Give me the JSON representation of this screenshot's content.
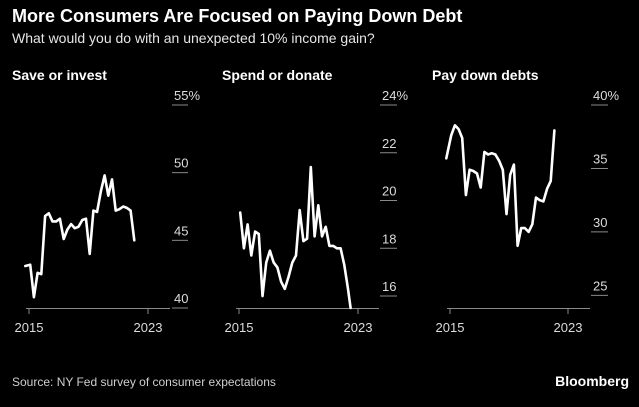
{
  "chart_data": {
    "type": "line",
    "title": "More Consumers Are Focused on Paying Down Debt",
    "subtitle": "What would you do with an unexpected 10% income gain?",
    "source": "Source: NY Fed survey of consumer expectations",
    "brand": "Bloomberg",
    "x_tick_labels": [
      "2015",
      "2023"
    ],
    "x_range": [
      2014.75,
      2023.0
    ],
    "panels": [
      {
        "title": "Save or invest",
        "ylim": [
          40,
          55
        ],
        "ticks": [
          55,
          50,
          45,
          40
        ],
        "tick_labels": [
          "55%",
          "50",
          "45",
          "40"
        ],
        "series": [
          {
            "x": 2014.75,
            "y": 43.1
          },
          {
            "x": 2015.08,
            "y": 43.2
          },
          {
            "x": 2015.33,
            "y": 40.8
          },
          {
            "x": 2015.58,
            "y": 42.6
          },
          {
            "x": 2015.83,
            "y": 42.5
          },
          {
            "x": 2016.08,
            "y": 46.8
          },
          {
            "x": 2016.33,
            "y": 47.0
          },
          {
            "x": 2016.58,
            "y": 46.4
          },
          {
            "x": 2016.83,
            "y": 46.4
          },
          {
            "x": 2017.08,
            "y": 46.6
          },
          {
            "x": 2017.33,
            "y": 45.1
          },
          {
            "x": 2017.58,
            "y": 45.8
          },
          {
            "x": 2017.83,
            "y": 46.2
          },
          {
            "x": 2018.08,
            "y": 45.9
          },
          {
            "x": 2018.33,
            "y": 46.0
          },
          {
            "x": 2018.58,
            "y": 46.5
          },
          {
            "x": 2018.83,
            "y": 46.6
          },
          {
            "x": 2019.08,
            "y": 44.0
          },
          {
            "x": 2019.33,
            "y": 47.2
          },
          {
            "x": 2019.58,
            "y": 47.1
          },
          {
            "x": 2019.83,
            "y": 48.6
          },
          {
            "x": 2020.08,
            "y": 49.8
          },
          {
            "x": 2020.33,
            "y": 48.3
          },
          {
            "x": 2020.58,
            "y": 49.5
          },
          {
            "x": 2020.83,
            "y": 47.2
          },
          {
            "x": 2021.08,
            "y": 47.3
          },
          {
            "x": 2021.33,
            "y": 47.5
          },
          {
            "x": 2021.58,
            "y": 47.4
          },
          {
            "x": 2021.83,
            "y": 47.2
          },
          {
            "x": 2022.08,
            "y": 45.0
          }
        ]
      },
      {
        "title": "Spend or donate",
        "ylim": [
          15.5,
          24
        ],
        "ticks": [
          24,
          22,
          20,
          18,
          16
        ],
        "tick_labels": [
          "24%",
          "22",
          "20",
          "18",
          "16"
        ],
        "series": [
          {
            "x": 2015.08,
            "y": 19.5
          },
          {
            "x": 2015.33,
            "y": 18.0
          },
          {
            "x": 2015.58,
            "y": 19.0
          },
          {
            "x": 2015.83,
            "y": 17.7
          },
          {
            "x": 2016.08,
            "y": 18.7
          },
          {
            "x": 2016.33,
            "y": 18.6
          },
          {
            "x": 2016.58,
            "y": 16.0
          },
          {
            "x": 2016.83,
            "y": 17.4
          },
          {
            "x": 2017.08,
            "y": 17.9
          },
          {
            "x": 2017.33,
            "y": 17.4
          },
          {
            "x": 2017.58,
            "y": 17.2
          },
          {
            "x": 2017.83,
            "y": 16.6
          },
          {
            "x": 2018.08,
            "y": 16.3
          },
          {
            "x": 2018.33,
            "y": 16.8
          },
          {
            "x": 2018.58,
            "y": 17.4
          },
          {
            "x": 2018.83,
            "y": 17.7
          },
          {
            "x": 2019.08,
            "y": 19.6
          },
          {
            "x": 2019.33,
            "y": 18.3
          },
          {
            "x": 2019.58,
            "y": 18.4
          },
          {
            "x": 2019.83,
            "y": 21.4
          },
          {
            "x": 2020.08,
            "y": 18.5
          },
          {
            "x": 2020.33,
            "y": 19.8
          },
          {
            "x": 2020.58,
            "y": 18.5
          },
          {
            "x": 2020.83,
            "y": 18.9
          },
          {
            "x": 2021.08,
            "y": 18.1
          },
          {
            "x": 2021.33,
            "y": 18.1
          },
          {
            "x": 2021.58,
            "y": 18.0
          },
          {
            "x": 2021.83,
            "y": 18.0
          },
          {
            "x": 2022.08,
            "y": 17.3
          },
          {
            "x": 2022.33,
            "y": 16.3
          },
          {
            "x": 2022.5,
            "y": 15.5
          }
        ]
      },
      {
        "title": "Pay down debts",
        "ylim": [
          24,
          40
        ],
        "ticks": [
          40,
          35,
          30,
          25
        ],
        "tick_labels": [
          "40%",
          "35",
          "30",
          "25"
        ],
        "series": [
          {
            "x": 2014.75,
            "y": 35.8
          },
          {
            "x": 2015.08,
            "y": 37.6
          },
          {
            "x": 2015.33,
            "y": 38.4
          },
          {
            "x": 2015.58,
            "y": 38.1
          },
          {
            "x": 2015.83,
            "y": 37.4
          },
          {
            "x": 2016.08,
            "y": 32.9
          },
          {
            "x": 2016.33,
            "y": 34.9
          },
          {
            "x": 2016.58,
            "y": 34.8
          },
          {
            "x": 2016.83,
            "y": 34.6
          },
          {
            "x": 2017.08,
            "y": 33.5
          },
          {
            "x": 2017.33,
            "y": 36.3
          },
          {
            "x": 2017.58,
            "y": 36.1
          },
          {
            "x": 2017.83,
            "y": 36.2
          },
          {
            "x": 2018.08,
            "y": 36.1
          },
          {
            "x": 2018.33,
            "y": 35.6
          },
          {
            "x": 2018.58,
            "y": 34.9
          },
          {
            "x": 2018.83,
            "y": 31.4
          },
          {
            "x": 2019.08,
            "y": 34.5
          },
          {
            "x": 2019.33,
            "y": 35.3
          },
          {
            "x": 2019.58,
            "y": 28.9
          },
          {
            "x": 2019.83,
            "y": 30.3
          },
          {
            "x": 2020.08,
            "y": 30.3
          },
          {
            "x": 2020.33,
            "y": 30.0
          },
          {
            "x": 2020.58,
            "y": 30.6
          },
          {
            "x": 2020.83,
            "y": 32.7
          },
          {
            "x": 2021.08,
            "y": 32.5
          },
          {
            "x": 2021.33,
            "y": 32.4
          },
          {
            "x": 2021.58,
            "y": 33.4
          },
          {
            "x": 2021.83,
            "y": 34.0
          },
          {
            "x": 2022.08,
            "y": 38.0
          }
        ]
      }
    ]
  }
}
